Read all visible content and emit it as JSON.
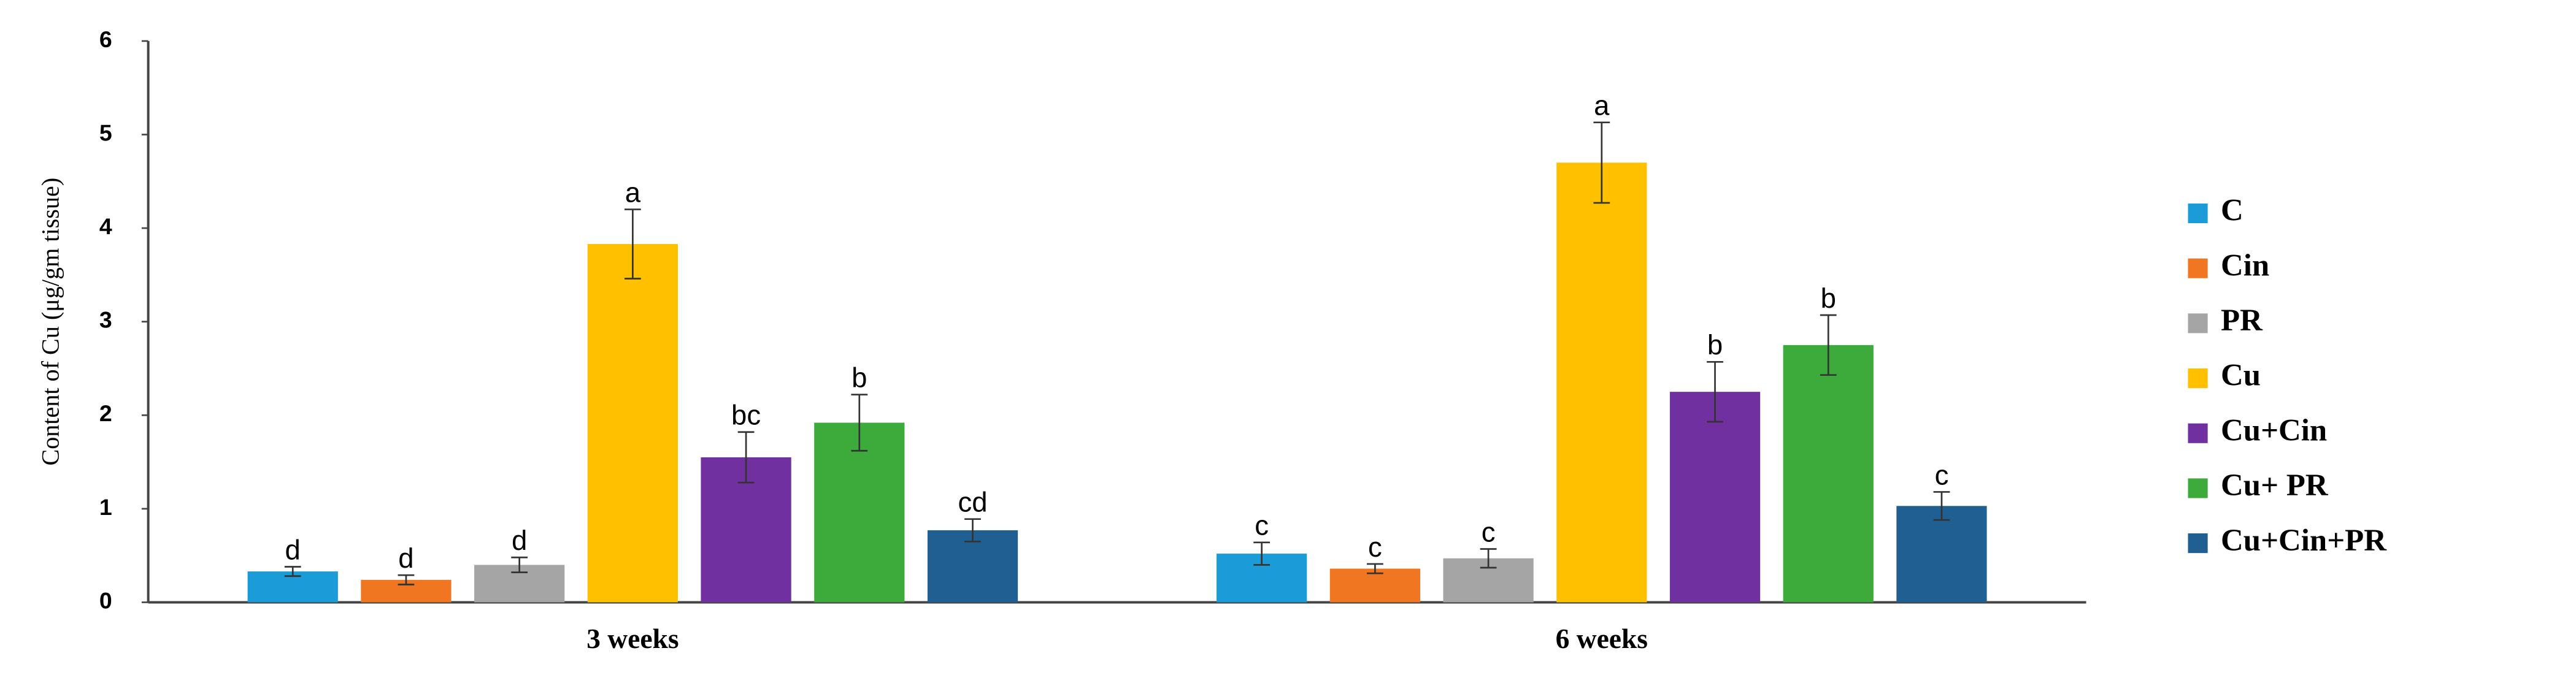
{
  "chart_data": {
    "type": "bar",
    "y_label": "Content  of Cu (μg/gm tissue)",
    "categories": [
      "3 weeks",
      "6 weeks"
    ],
    "series": [
      {
        "name": "C",
        "color": "#1b9bd7",
        "values": [
          0.33,
          0.52
        ],
        "errors": [
          0.05,
          0.12
        ],
        "letters": [
          "d",
          "c"
        ]
      },
      {
        "name": "Cin",
        "color": "#f07622",
        "values": [
          0.24,
          0.36
        ],
        "errors": [
          0.05,
          0.05
        ],
        "letters": [
          "d",
          "c"
        ]
      },
      {
        "name": "PR",
        "color": "#a5a5a5",
        "values": [
          0.4,
          0.47
        ],
        "errors": [
          0.08,
          0.1
        ],
        "letters": [
          "d",
          "c"
        ]
      },
      {
        "name": "Cu",
        "color": "#ffc000",
        "values": [
          3.83,
          4.7
        ],
        "errors": [
          0.37,
          0.43
        ],
        "letters": [
          "a",
          "a"
        ]
      },
      {
        "name": "Cu+Cin",
        "color": "#7030a0",
        "values": [
          1.55,
          2.25
        ],
        "errors": [
          0.27,
          0.32
        ],
        "letters": [
          "bc",
          "b"
        ]
      },
      {
        "name": "Cu+ PR",
        "color": "#3cab3c",
        "values": [
          1.92,
          2.75
        ],
        "errors": [
          0.3,
          0.32
        ],
        "letters": [
          "b",
          "b"
        ]
      },
      {
        "name": "Cu+Cin+PR",
        "color": "#1f5f91",
        "values": [
          0.77,
          1.03
        ],
        "errors": [
          0.12,
          0.15
        ],
        "letters": [
          "cd",
          "c"
        ]
      }
    ],
    "ylim": [
      0,
      6
    ],
    "yticks": [
      0,
      1,
      2,
      3,
      4,
      5,
      6
    ],
    "grid": false,
    "legend": "right"
  }
}
